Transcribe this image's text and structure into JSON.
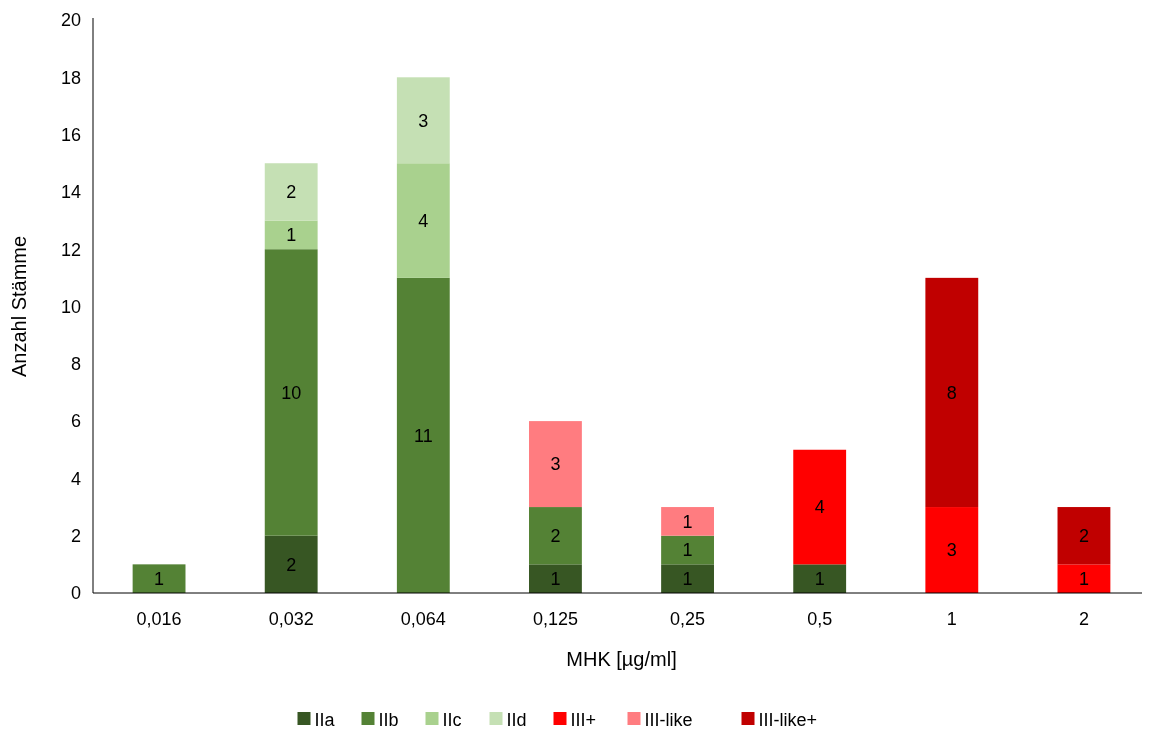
{
  "chart_data": {
    "type": "bar",
    "stacked": true,
    "xlabel": "MHK [µg/ml]",
    "ylabel": "Anzahl Stämme",
    "categories": [
      "0,016",
      "0,032",
      "0,064",
      "0,125",
      "0,25",
      "0,5",
      "1",
      "2"
    ],
    "series": [
      {
        "name": "IIa",
        "color": "#375623",
        "values": [
          null,
          2,
          null,
          1,
          1,
          1,
          null,
          null
        ]
      },
      {
        "name": "IIb",
        "color": "#548235",
        "values": [
          1,
          10,
          11,
          2,
          1,
          null,
          null,
          null
        ]
      },
      {
        "name": "IIc",
        "color": "#a9d18e",
        "values": [
          null,
          1,
          4,
          null,
          null,
          null,
          null,
          null
        ]
      },
      {
        "name": "IId",
        "color": "#c5e0b4",
        "values": [
          null,
          2,
          3,
          null,
          null,
          null,
          null,
          null
        ]
      },
      {
        "name": "III+",
        "color": "#ff0000",
        "values": [
          null,
          null,
          null,
          null,
          null,
          4,
          3,
          1
        ]
      },
      {
        "name": "III-like",
        "color": "#ff7c80",
        "values": [
          null,
          null,
          null,
          3,
          1,
          null,
          null,
          null
        ]
      },
      {
        "name": "III-like+",
        "color": "#c00000",
        "values": [
          null,
          null,
          null,
          null,
          null,
          null,
          8,
          2
        ]
      }
    ],
    "ylim": [
      0,
      20
    ],
    "yticks": [
      0,
      2,
      4,
      6,
      8,
      10,
      12,
      14,
      16,
      18,
      20
    ],
    "data_labels": true,
    "grid": false,
    "legend": "bottom"
  }
}
